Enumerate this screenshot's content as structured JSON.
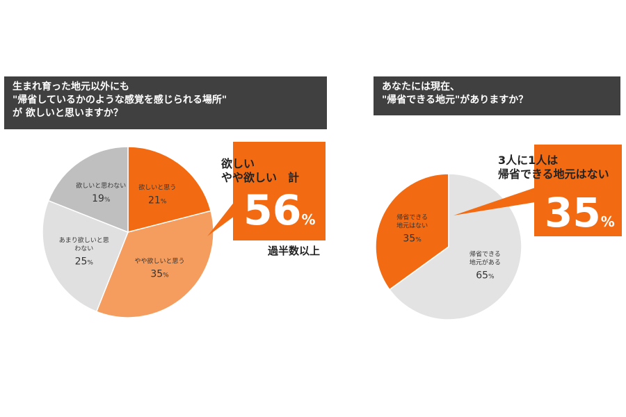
{
  "chart_data": [
    {
      "type": "pie",
      "question": [
        "生まれ育った地元以外にも",
        "\"帰省しているかのような感覚を感じられる場所\"",
        "が 欲しいと思いますか？"
      ],
      "slices": [
        {
          "label": "欲しいと思う",
          "value": 21,
          "color": "#f26b12"
        },
        {
          "label": "やや欲しいと思う",
          "value": 35,
          "color": "#f59d5e"
        },
        {
          "label": "あまり欲しいと思わない",
          "value": 25,
          "color": "#e0e0e0"
        },
        {
          "label": "欲しいと思わない",
          "value": 19,
          "color": "#bfbfbf"
        }
      ],
      "callout": {
        "heading": [
          "欲しい",
          "やや欲しい　計"
        ],
        "value": "56",
        "unit": "%",
        "note": "過半数以上",
        "color": "#f26b12"
      }
    },
    {
      "type": "pie",
      "question": [
        "あなたには現在、",
        "\"帰省できる地元\"がありますか？"
      ],
      "slices": [
        {
          "label": "帰省できる地元はない",
          "value": 35,
          "color": "#f26b12"
        },
        {
          "label": "帰省できる地元がある",
          "value": 65,
          "color": "#e3e3e3"
        }
      ],
      "callout": {
        "heading": [
          "3人に1人は",
          "帰省できる地元はない"
        ],
        "value": "35",
        "unit": "%",
        "color": "#f26b12"
      }
    }
  ]
}
